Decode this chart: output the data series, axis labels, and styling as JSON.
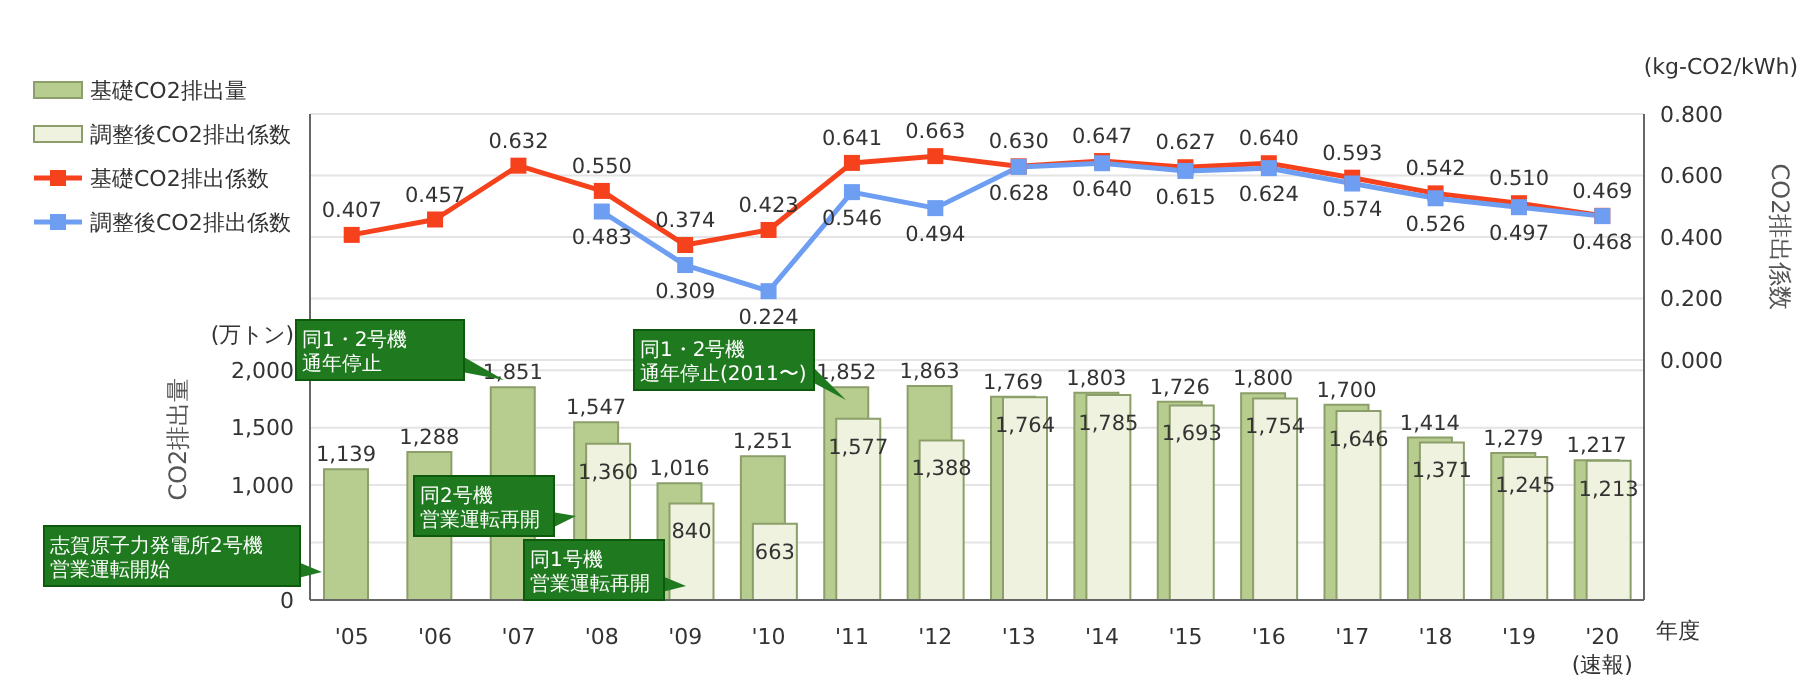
{
  "chart_data": {
    "type": "bar",
    "categories": [
      "'05",
      "'06",
      "'07",
      "'08",
      "'09",
      "'10",
      "'11",
      "'12",
      "'13",
      "'14",
      "'15",
      "'16",
      "'17",
      "'18",
      "'19",
      "'20\n(速報)"
    ],
    "xlabel": "年度",
    "ylabel": "CO2排出量",
    "y2label": "CO2排出係数",
    "series": [
      {
        "name": "基礎CO2排出量",
        "color": "#b7cc8f",
        "values": [
          1139,
          1288,
          1851,
          1547,
          1016,
          1251,
          1852,
          1863,
          1769,
          1803,
          1726,
          1800,
          1700,
          1414,
          1279,
          1217
        ],
        "value_labels": [
          "1,139",
          "1,288",
          "1,851",
          "1,547",
          "1,016",
          "1,251",
          "1,852",
          "1,863",
          "1,769",
          "1,803",
          "1,726",
          "1,800",
          "1,700",
          "1,414",
          "1,279",
          "1,217"
        ]
      },
      {
        "name": "調整後CO2排出係数",
        "type": "bar",
        "color": "#eef2de",
        "values": [
          null,
          null,
          null,
          1360,
          840,
          663,
          1577,
          1388,
          1764,
          1785,
          1693,
          1754,
          1646,
          1371,
          1245,
          1213
        ],
        "value_labels": [
          null,
          null,
          null,
          "1,360",
          "840",
          "663",
          "1,577",
          "1,388",
          "1,764",
          "1,785",
          "1,693",
          "1,754",
          "1,646",
          "1,371",
          "1,245",
          "1,213"
        ]
      },
      {
        "name": "基礎CO2排出係数",
        "type": "line",
        "axis": "y2",
        "color": "#f5421c",
        "values": [
          0.407,
          0.457,
          0.632,
          0.55,
          0.374,
          0.423,
          0.641,
          0.663,
          0.63,
          0.647,
          0.627,
          0.64,
          0.593,
          0.542,
          0.51,
          0.469
        ],
        "value_labels": [
          "0.407",
          "0.457",
          "0.632",
          "0.550",
          "0.374",
          "0.423",
          "0.641",
          "0.663",
          "0.630",
          "0.647",
          "0.627",
          "0.640",
          "0.593",
          "0.542",
          "0.510",
          "0.469"
        ]
      },
      {
        "name": "調整後CO2排出係数",
        "type": "line",
        "axis": "y2",
        "color": "#6e9ef2",
        "values": [
          null,
          null,
          null,
          0.483,
          0.309,
          0.224,
          0.546,
          0.494,
          0.628,
          0.64,
          0.615,
          0.624,
          0.574,
          0.526,
          0.497,
          0.468
        ],
        "value_labels": [
          null,
          null,
          null,
          "0.483",
          "0.309",
          "0.224",
          "0.546",
          "0.494",
          "0.628",
          "0.640",
          "0.615",
          "0.624",
          "0.574",
          "0.526",
          "0.497",
          "0.468"
        ]
      }
    ],
    "ylim": [
      0,
      4230
    ],
    "yticks": [
      0,
      {
        "value": 500,
        "label": null
      },
      {
        "value": 1000,
        "label": "1,000"
      },
      {
        "value": 1500,
        "label": "1,500"
      },
      {
        "value": 2000,
        "label": "2,000"
      }
    ],
    "y2lim": [
      -0.78,
      0.8
    ],
    "y2ticks": [
      {
        "value": 0,
        "label": "0.000"
      },
      {
        "value": 0.2,
        "label": "0.200"
      },
      {
        "value": 0.4,
        "label": "0.400"
      },
      {
        "value": 0.6,
        "label": "0.600"
      },
      {
        "value": 0.8,
        "label": "0.800"
      }
    ],
    "grid": "y",
    "legend": "top left",
    "marker": "square",
    "annotations": [
      "(万トン)",
      "(kg-CO2/kWh)",
      "志賀原子力発電所2号機営業運転開始",
      "同1・2号機通年停止",
      "同2号機営業運転再開",
      "同1号機営業運転再開",
      "同1・2号機通年停止(2011〜)"
    ]
  }
}
